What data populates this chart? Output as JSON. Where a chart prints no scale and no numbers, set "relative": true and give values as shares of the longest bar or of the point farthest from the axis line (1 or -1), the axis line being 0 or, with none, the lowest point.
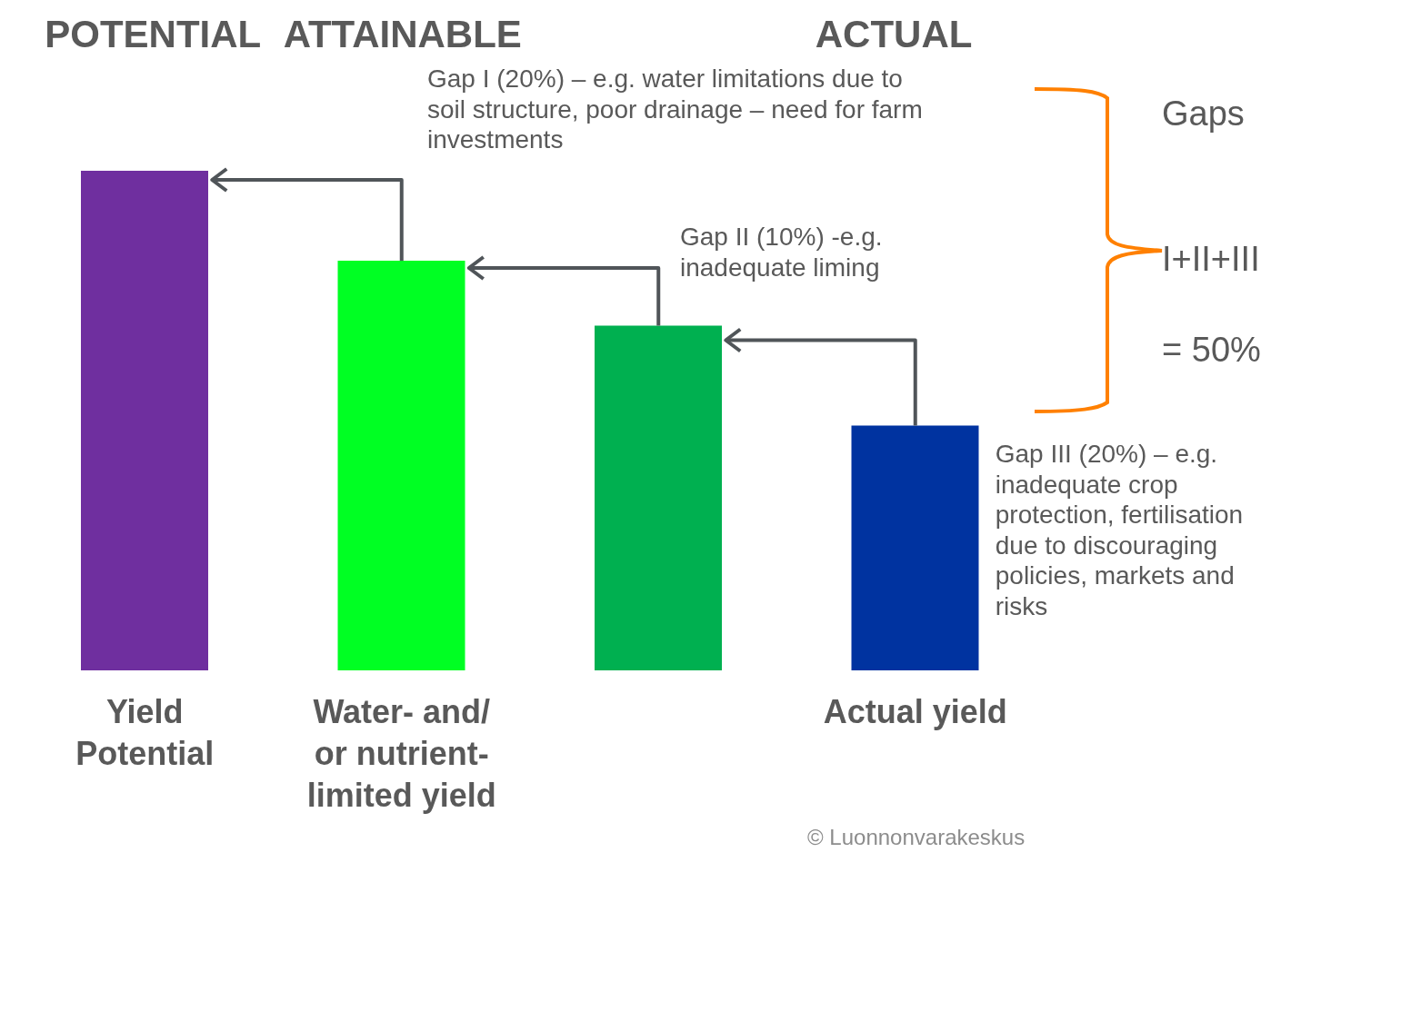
{
  "chart_data": {
    "type": "bar",
    "relative": true,
    "categories": [
      "Yield Potential",
      "Water- and/ or nutrient- limited yield",
      null,
      "Actual yield"
    ],
    "values": [
      1,
      0.82,
      0.69,
      0.49
    ],
    "colors": [
      "#6f2f9f",
      "#00ff23",
      "#00b050",
      "#0033a0"
    ],
    "grid": false,
    "legend": false,
    "annotations": [
      "POTENTIAL",
      "ATTAINABLE",
      "ACTUAL",
      "Gap I (20%) – e.g. water limitations due to soil structure, poor drainage – need for farm investments",
      "Gap II (10%)  -e.g. inadequate liming",
      "Gap III (20%) – e.g. inadequate crop protection, fertilisation due to discouraging policies, markets and risks",
      "Gaps",
      "I+II+III",
      "= 50%",
      "© Luonnonvarakeskus"
    ]
  }
}
